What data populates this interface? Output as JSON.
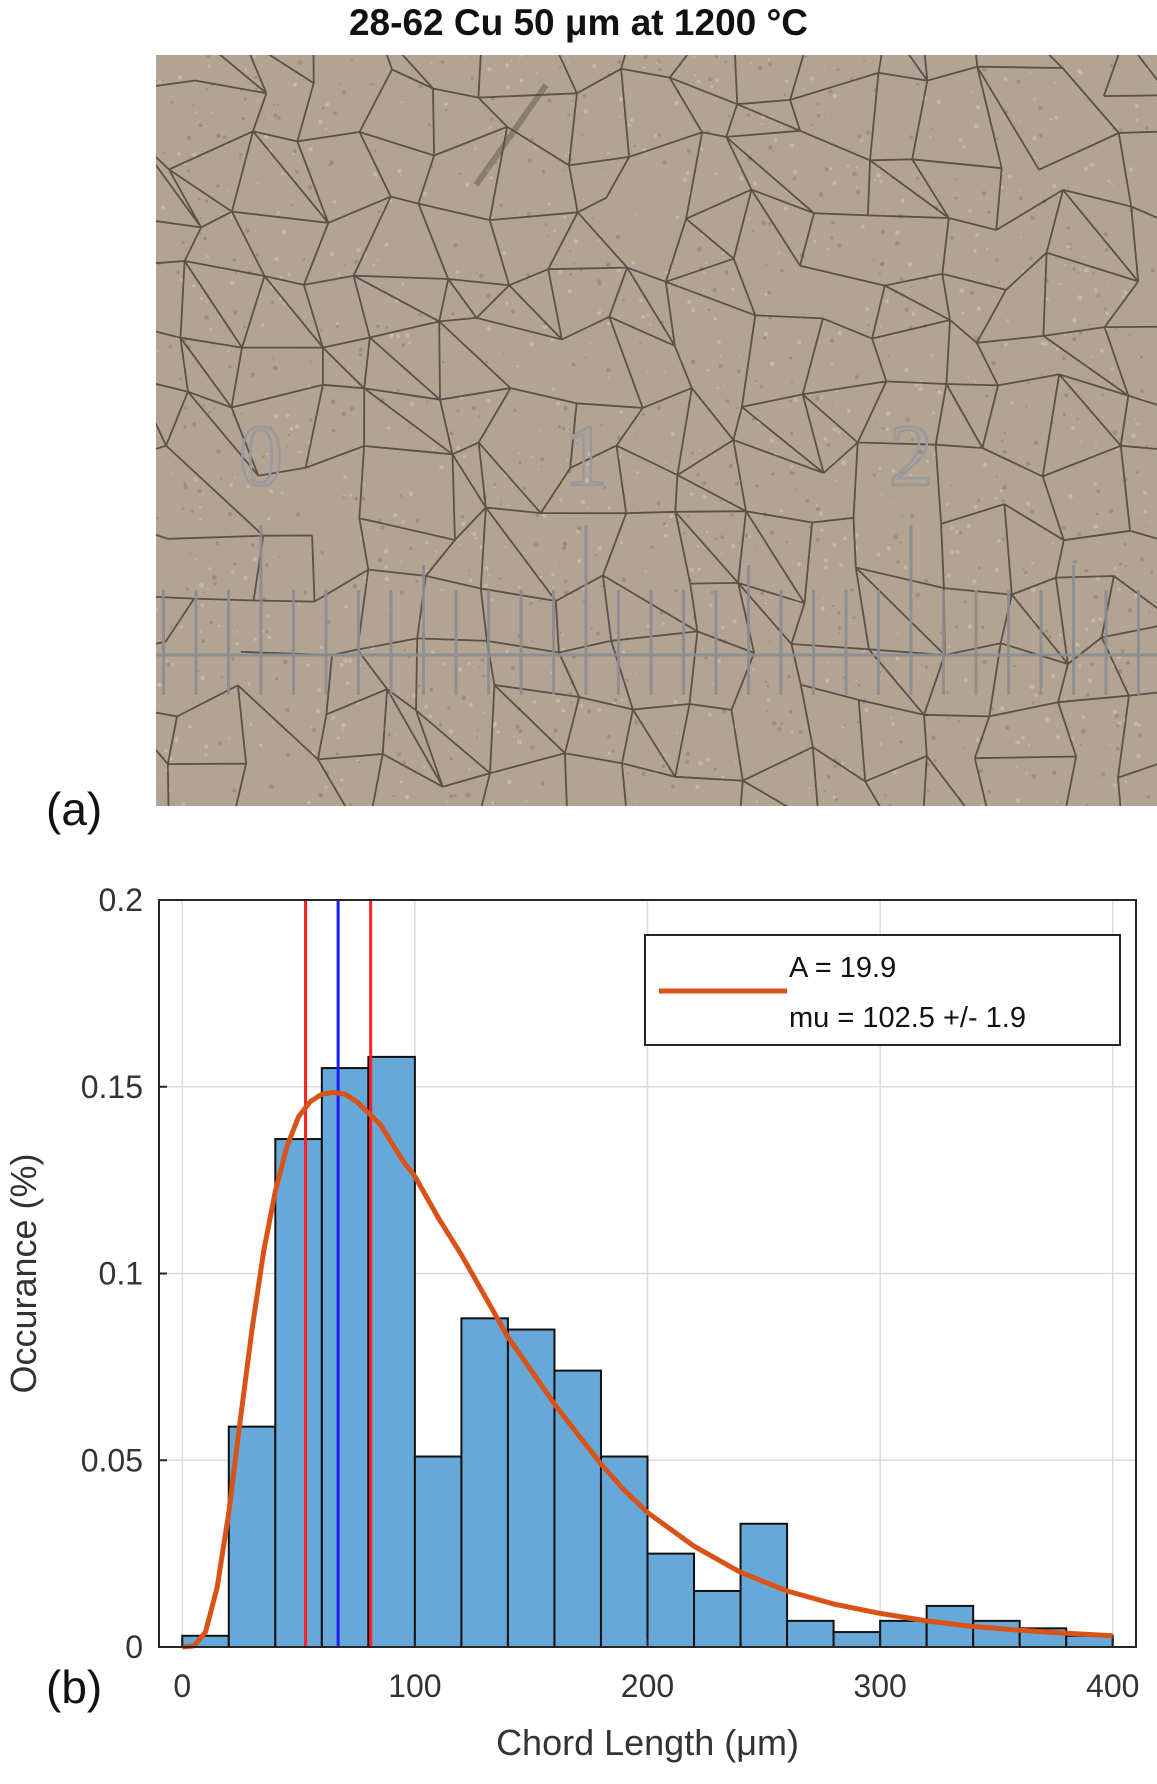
{
  "figure": {
    "title": "28-62 Cu 50 μm at 1200 °C",
    "panel_a_label": "(a)",
    "panel_b_label": "(b)"
  },
  "micrograph": {
    "scale_numbers": [
      "0",
      "1",
      "2"
    ],
    "background_color": "#b3a392",
    "boundary_color": "#3c3630",
    "reticle_color": "#8c8c90"
  },
  "chart_data": {
    "type": "bar",
    "xlabel": "Chord Length (μm)",
    "ylabel": "Occurance (%)",
    "xlim": [
      -10,
      410
    ],
    "ylim": [
      0,
      0.2
    ],
    "xticks": [
      0,
      100,
      200,
      300,
      400
    ],
    "yticks": [
      0,
      0.05,
      0.1,
      0.15,
      0.2
    ],
    "ytick_labels": [
      "0",
      "0.05",
      "0.1",
      "0.15",
      "0.2"
    ],
    "grid": true,
    "bin_width": 20,
    "bin_starts": [
      0,
      20,
      40,
      60,
      80,
      100,
      120,
      140,
      160,
      180,
      200,
      220,
      240,
      260,
      280,
      300,
      320,
      340,
      360,
      380
    ],
    "values": [
      0.003,
      0.059,
      0.136,
      0.155,
      0.158,
      0.051,
      0.088,
      0.085,
      0.074,
      0.051,
      0.025,
      0.015,
      0.033,
      0.007,
      0.004,
      0.007,
      0.011,
      0.007,
      0.005,
      0.003
    ],
    "bar_color": "#66a8d8",
    "fit_curve": {
      "color": "#d95319",
      "x": [
        0,
        5,
        10,
        15,
        20,
        25,
        30,
        35,
        40,
        45,
        50,
        55,
        60,
        65,
        70,
        75,
        80,
        85,
        90,
        95,
        100,
        110,
        120,
        130,
        140,
        150,
        160,
        170,
        180,
        190,
        200,
        220,
        240,
        260,
        280,
        300,
        320,
        340,
        360,
        380,
        400
      ],
      "y": [
        0,
        0.0003,
        0.004,
        0.016,
        0.036,
        0.061,
        0.085,
        0.106,
        0.122,
        0.134,
        0.142,
        0.146,
        0.148,
        0.1485,
        0.148,
        0.146,
        0.143,
        0.14,
        0.135,
        0.13,
        0.126,
        0.115,
        0.105,
        0.094,
        0.083,
        0.074,
        0.065,
        0.057,
        0.049,
        0.042,
        0.036,
        0.027,
        0.02,
        0.015,
        0.0115,
        0.009,
        0.007,
        0.0055,
        0.0045,
        0.0037,
        0.003
      ]
    },
    "vertical_lines": [
      {
        "x": 53,
        "color": "#ff2020"
      },
      {
        "x": 67,
        "color": "#1a1aff"
      },
      {
        "x": 81,
        "color": "#ff2020"
      }
    ],
    "legend": {
      "line1": "A = 19.9",
      "line2": "mu = 102.5 +/-  1.9",
      "position": "top-right"
    }
  }
}
